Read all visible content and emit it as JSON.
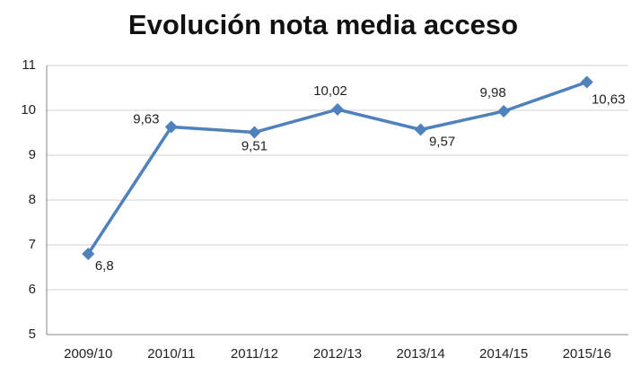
{
  "chart_data": {
    "type": "line",
    "title": "Evolución nota media acceso",
    "categories": [
      "2009/10",
      "2010/11",
      "2011/12",
      "2012/13",
      "2013/14",
      "2014/15",
      "2015/16"
    ],
    "values": [
      6.8,
      9.63,
      9.51,
      10.02,
      9.57,
      9.98,
      10.63
    ],
    "value_labels": [
      "6,8",
      "9,63",
      "9,51",
      "10,02",
      "9,57",
      "9,98",
      "10,63"
    ],
    "color": "#4f81bd",
    "ylim": [
      5,
      11
    ],
    "yticks": [
      5,
      6,
      7,
      8,
      9,
      10,
      11
    ],
    "grid": true
  }
}
